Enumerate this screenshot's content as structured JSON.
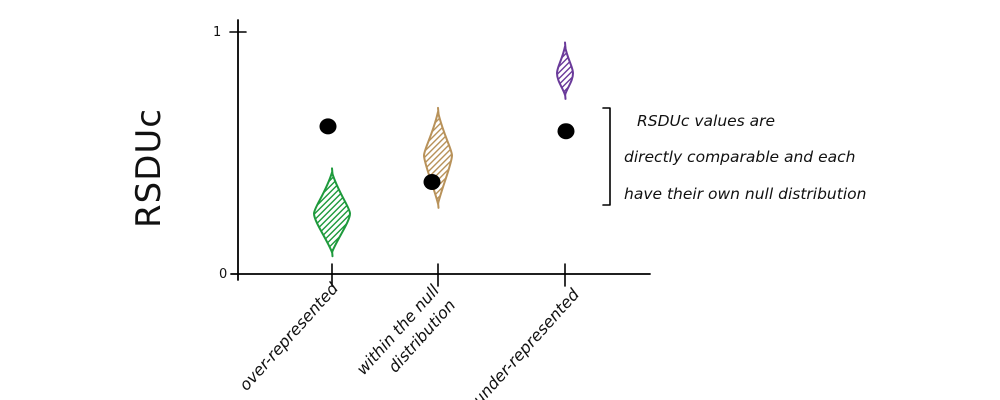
{
  "chart_data": {
    "type": "scatter",
    "ylabel": "RSDUc",
    "xlabel": "",
    "ylim": [
      0,
      1
    ],
    "yticks": [
      "0",
      "1"
    ],
    "grid": false,
    "categories": [
      "over-represented",
      "within the null distribution",
      "under-represented"
    ],
    "category_label_lines": [
      [
        "over-represented"
      ],
      [
        "within the null",
        "distribution"
      ],
      [
        "under-represented"
      ]
    ],
    "observed_values": [
      0.61,
      0.38,
      0.59
    ],
    "null_distributions": [
      {
        "category": "over-represented",
        "min": 0.09,
        "max": 0.42,
        "center": 0.25,
        "color": "#1e9a3c"
      },
      {
        "category": "within the null distribution",
        "min": 0.29,
        "max": 0.67,
        "center": 0.49,
        "color": "#b8925a"
      },
      {
        "category": "under-represented",
        "min": 0.74,
        "max": 0.94,
        "center": 0.83,
        "color": "#6a3a9a"
      }
    ],
    "annotation": {
      "lines": [
        "RSDUc values are",
        "directly comparable and each",
        "have their own null distribution"
      ]
    }
  }
}
